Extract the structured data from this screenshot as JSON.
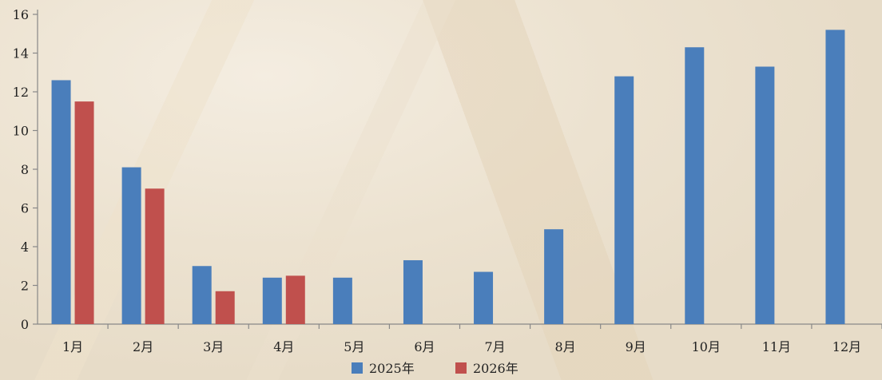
{
  "chart_data": {
    "type": "bar",
    "categories": [
      "1月",
      "2月",
      "3月",
      "4月",
      "5月",
      "6月",
      "7月",
      "8月",
      "9月",
      "10月",
      "11月",
      "12月"
    ],
    "series": [
      {
        "name": "2025年",
        "color": "#4a7ebb",
        "values": [
          12.6,
          8.1,
          3.0,
          2.4,
          2.4,
          3.3,
          2.7,
          4.9,
          12.8,
          14.3,
          13.3,
          15.2
        ]
      },
      {
        "name": "2026年",
        "color": "#c0504d",
        "values": [
          11.5,
          7.0,
          1.7,
          2.5,
          null,
          null,
          null,
          null,
          null,
          null,
          null,
          null
        ]
      }
    ],
    "title": "",
    "xlabel": "",
    "ylabel": "",
    "ylim": [
      0,
      16
    ],
    "yticks": [
      0,
      2,
      4,
      6,
      8,
      10,
      12,
      14,
      16
    ],
    "grid": false,
    "legend_position": "bottom"
  }
}
